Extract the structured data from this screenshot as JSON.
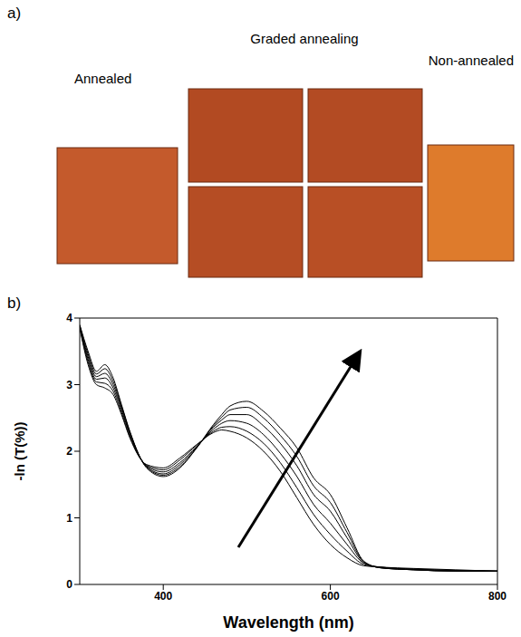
{
  "photo": {
    "letter": "a)",
    "labels": {
      "left": "Annealed",
      "middle": "Graded annealing",
      "right": "Non-annealed"
    }
  },
  "chart_data": {
    "letter": "b)",
    "type": "line",
    "x_label": "Wavelength (nm)",
    "y_label": "-ln (T(%))",
    "x": [
      300,
      310,
      320,
      330,
      340,
      350,
      360,
      380,
      400,
      420,
      440,
      460,
      470,
      480,
      500,
      520,
      540,
      560,
      580,
      600,
      620,
      640,
      660,
      700,
      750,
      800
    ],
    "series": [
      {
        "color": "#000000",
        "values": [
          3.85,
          3.3,
          3.0,
          2.95,
          2.85,
          2.55,
          2.2,
          1.8,
          1.75,
          1.9,
          2.1,
          2.28,
          2.32,
          2.3,
          2.2,
          2.0,
          1.7,
          1.3,
          0.9,
          0.6,
          0.4,
          0.28,
          0.26,
          0.24,
          0.22,
          0.2
        ]
      },
      {
        "color": "#000000",
        "values": [
          3.86,
          3.34,
          3.04,
          3.02,
          2.9,
          2.58,
          2.22,
          1.79,
          1.72,
          1.87,
          2.09,
          2.3,
          2.36,
          2.37,
          2.3,
          2.12,
          1.83,
          1.45,
          1.05,
          0.75,
          0.5,
          0.3,
          0.26,
          0.23,
          0.21,
          0.2
        ]
      },
      {
        "color": "#000000",
        "values": [
          3.87,
          3.38,
          3.08,
          3.1,
          2.95,
          2.62,
          2.25,
          1.78,
          1.69,
          1.83,
          2.07,
          2.33,
          2.42,
          2.46,
          2.42,
          2.25,
          1.97,
          1.62,
          1.2,
          0.92,
          0.6,
          0.32,
          0.26,
          0.23,
          0.21,
          0.2
        ]
      },
      {
        "color": "#000000",
        "values": [
          3.88,
          3.42,
          3.12,
          3.17,
          3.0,
          2.65,
          2.27,
          1.77,
          1.66,
          1.8,
          2.06,
          2.36,
          2.47,
          2.55,
          2.55,
          2.38,
          2.12,
          1.78,
          1.35,
          1.1,
          0.7,
          0.33,
          0.25,
          0.22,
          0.2,
          0.2
        ]
      },
      {
        "color": "#000000",
        "values": [
          3.89,
          3.46,
          3.16,
          3.24,
          3.05,
          2.68,
          2.29,
          1.76,
          1.64,
          1.77,
          2.05,
          2.38,
          2.51,
          2.62,
          2.66,
          2.5,
          2.24,
          1.92,
          1.48,
          1.23,
          0.78,
          0.34,
          0.25,
          0.22,
          0.2,
          0.2
        ]
      },
      {
        "color": "#000000",
        "values": [
          3.9,
          3.5,
          3.2,
          3.3,
          3.1,
          2.7,
          2.3,
          1.75,
          1.62,
          1.75,
          2.05,
          2.4,
          2.55,
          2.68,
          2.75,
          2.6,
          2.35,
          2.05,
          1.6,
          1.35,
          0.85,
          0.35,
          0.25,
          0.22,
          0.2,
          0.2
        ]
      }
    ],
    "xlim": [
      300,
      800
    ],
    "xticks": [
      400,
      600,
      800
    ],
    "ylim": [
      0,
      4
    ],
    "yticks": [
      0,
      1,
      2,
      3,
      4
    ],
    "grid": false
  }
}
